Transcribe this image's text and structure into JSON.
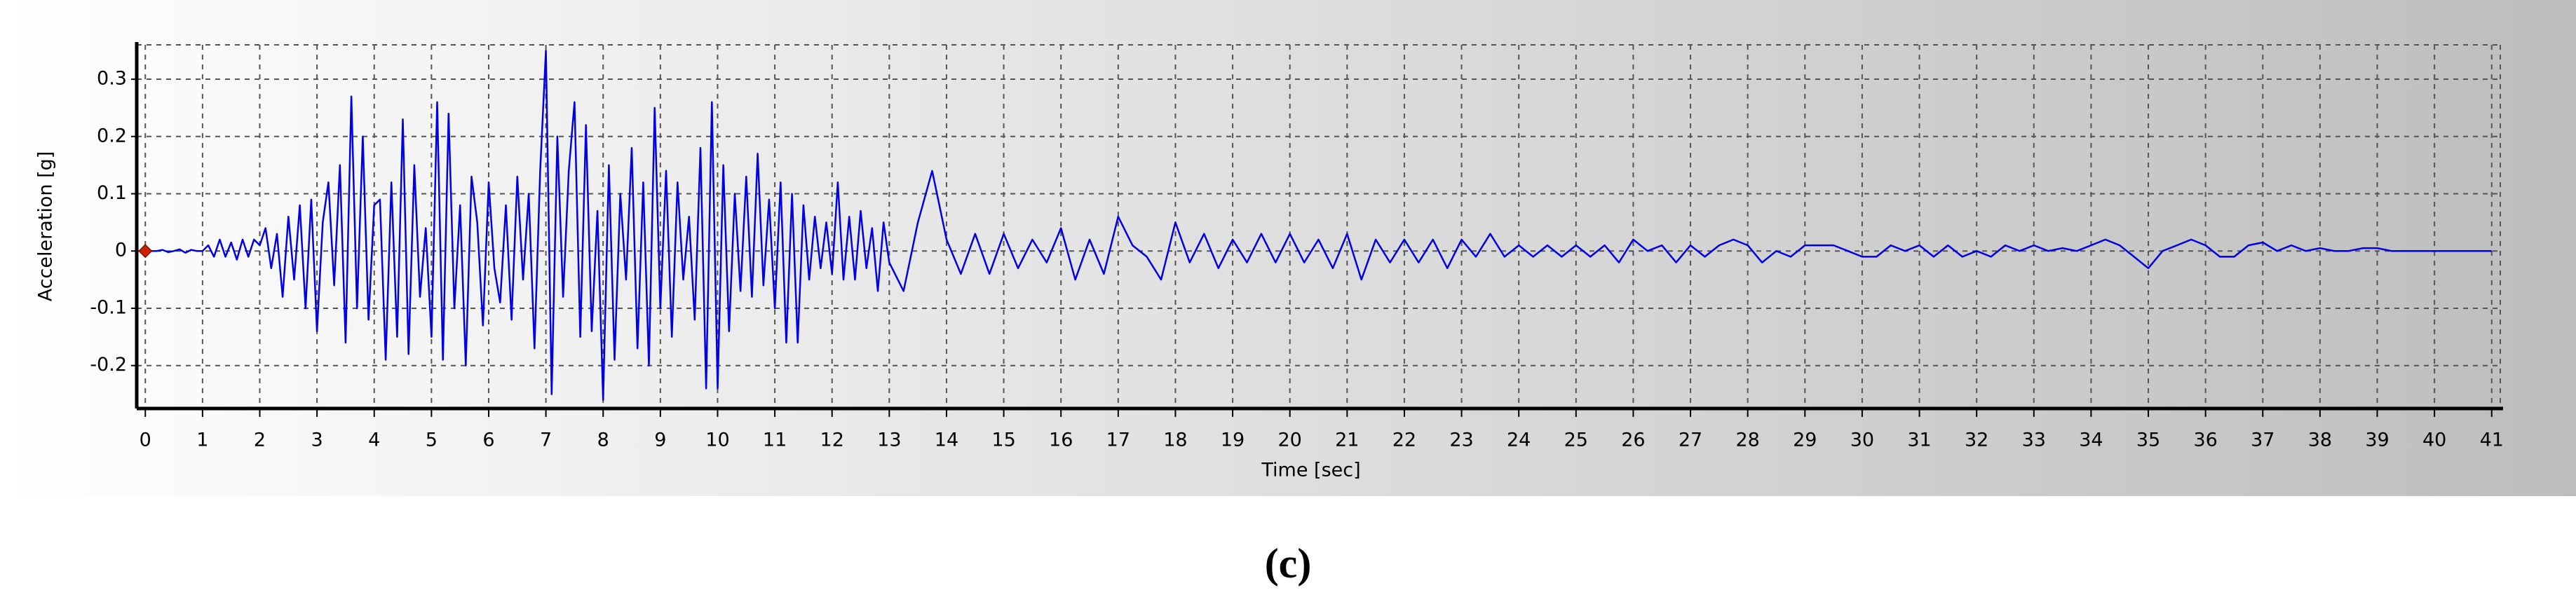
{
  "chart_data": {
    "type": "line",
    "x_label": "Time [sec]",
    "y_label": "Acceleration [g]",
    "caption": "(c)",
    "color": "#0000e6",
    "grid": true,
    "x": [
      0,
      0.1,
      0.2,
      0.3,
      0.4,
      0.5,
      0.6,
      0.7,
      0.8,
      0.9,
      1,
      1.1,
      1.2,
      1.3,
      1.4,
      1.5,
      1.6,
      1.7,
      1.8,
      1.9,
      2,
      2.1,
      2.2,
      2.3,
      2.4,
      2.5,
      2.6,
      2.7,
      2.8,
      2.9,
      3,
      3.1,
      3.2,
      3.3,
      3.4,
      3.5,
      3.6,
      3.7,
      3.8,
      3.9,
      4,
      4.1,
      4.2,
      4.3,
      4.4,
      4.5,
      4.6,
      4.7,
      4.8,
      4.9,
      5,
      5.1,
      5.2,
      5.3,
      5.4,
      5.5,
      5.6,
      5.7,
      5.8,
      5.9,
      6,
      6.1,
      6.2,
      6.3,
      6.4,
      6.5,
      6.6,
      6.7,
      6.8,
      6.9,
      7,
      7.1,
      7.2,
      7.3,
      7.4,
      7.5,
      7.6,
      7.7,
      7.8,
      7.9,
      8,
      8.1,
      8.2,
      8.3,
      8.4,
      8.5,
      8.6,
      8.7,
      8.8,
      8.9,
      9,
      9.1,
      9.2,
      9.3,
      9.4,
      9.5,
      9.6,
      9.7,
      9.8,
      9.9,
      10,
      10.1,
      10.2,
      10.3,
      10.4,
      10.5,
      10.6,
      10.7,
      10.8,
      10.9,
      11,
      11.1,
      11.2,
      11.3,
      11.4,
      11.5,
      11.6,
      11.7,
      11.8,
      11.9,
      12,
      12.1,
      12.2,
      12.3,
      12.4,
      12.5,
      12.6,
      12.7,
      12.8,
      12.9,
      13,
      13.25,
      13.5,
      13.75,
      14,
      14.25,
      14.5,
      14.75,
      15,
      15.25,
      15.5,
      15.75,
      16,
      16.25,
      16.5,
      16.75,
      17,
      17.25,
      17.5,
      17.75,
      18,
      18.25,
      18.5,
      18.75,
      19,
      19.25,
      19.5,
      19.75,
      20,
      20.25,
      20.5,
      20.75,
      21,
      21.25,
      21.5,
      21.75,
      22,
      22.25,
      22.5,
      22.75,
      23,
      23.25,
      23.5,
      23.75,
      24,
      24.25,
      24.5,
      24.75,
      25,
      25.25,
      25.5,
      25.75,
      26,
      26.25,
      26.5,
      26.75,
      27,
      27.25,
      27.5,
      27.75,
      28,
      28.25,
      28.5,
      28.75,
      29,
      29.25,
      29.5,
      29.75,
      30,
      30.25,
      30.5,
      30.75,
      31,
      31.25,
      31.5,
      31.75,
      32,
      32.25,
      32.5,
      32.75,
      33,
      33.25,
      33.5,
      33.75,
      34,
      34.25,
      34.5,
      34.75,
      35,
      35.25,
      35.5,
      35.75,
      36,
      36.25,
      36.5,
      36.75,
      37,
      37.25,
      37.5,
      37.75,
      38,
      38.25,
      38.5,
      38.75,
      39,
      39.25,
      39.5,
      39.75,
      40,
      40.5,
      41
    ],
    "values": [
      0,
      0,
      0,
      0.002,
      -0.002,
      0,
      0.003,
      -0.003,
      0.002,
      0,
      0,
      0.01,
      -0.01,
      0.02,
      -0.01,
      0.015,
      -0.015,
      0.02,
      -0.01,
      0.02,
      0.01,
      0.04,
      -0.03,
      0.03,
      -0.08,
      0.06,
      -0.05,
      0.08,
      -0.1,
      0.09,
      -0.14,
      0.05,
      0.12,
      -0.06,
      0.15,
      -0.16,
      0.27,
      -0.1,
      0.2,
      -0.12,
      0.08,
      0.09,
      -0.19,
      0.12,
      -0.15,
      0.23,
      -0.18,
      0.15,
      -0.08,
      0.04,
      -0.15,
      0.26,
      -0.19,
      0.24,
      -0.1,
      0.08,
      -0.2,
      0.13,
      0.05,
      -0.13,
      0.12,
      -0.03,
      -0.09,
      0.08,
      -0.12,
      0.13,
      -0.05,
      0.1,
      -0.17,
      0.14,
      0.35,
      -0.25,
      0.2,
      -0.08,
      0.14,
      0.26,
      -0.15,
      0.22,
      -0.14,
      0.07,
      -0.26,
      0.15,
      -0.19,
      0.1,
      -0.05,
      0.18,
      -0.17,
      0.12,
      -0.2,
      0.25,
      -0.1,
      0.14,
      -0.15,
      0.12,
      -0.05,
      0.06,
      -0.12,
      0.18,
      -0.24,
      0.26,
      -0.24,
      0.15,
      -0.14,
      0.1,
      -0.07,
      0.13,
      -0.08,
      0.17,
      -0.06,
      0.09,
      -0.1,
      0.12,
      -0.16,
      0.1,
      -0.16,
      0.08,
      -0.05,
      0.06,
      -0.03,
      0.05,
      -0.04,
      0.12,
      -0.05,
      0.06,
      -0.05,
      0.07,
      -0.03,
      0.04,
      -0.07,
      0.05,
      -0.02,
      -0.07,
      0.05,
      0.14,
      0.02,
      -0.04,
      0.03,
      -0.04,
      0.03,
      -0.03,
      0.02,
      -0.02,
      0.04,
      -0.05,
      0.02,
      -0.04,
      0.06,
      0.01,
      -0.01,
      -0.05,
      0.05,
      -0.02,
      0.03,
      -0.03,
      0.02,
      -0.02,
      0.03,
      -0.02,
      0.03,
      -0.02,
      0.02,
      -0.03,
      0.03,
      -0.05,
      0.02,
      -0.02,
      0.02,
      -0.02,
      0.02,
      -0.03,
      0.02,
      -0.01,
      0.03,
      -0.01,
      0.01,
      -0.01,
      0.01,
      -0.01,
      0.01,
      -0.01,
      0.01,
      -0.02,
      0.02,
      0,
      0.01,
      -0.02,
      0.01,
      -0.01,
      0.01,
      0.02,
      0.01,
      -0.02,
      0,
      -0.01,
      0.01,
      0.01,
      0.01,
      0,
      -0.01,
      -0.01,
      0.01,
      0,
      0.01,
      -0.01,
      0.01,
      -0.01,
      0,
      -0.01,
      0.01,
      0,
      0.01,
      0,
      0.005,
      0,
      0.01,
      0.02,
      0.01,
      -0.01,
      -0.03,
      0,
      0.01,
      0.02,
      0.01,
      -0.01,
      -0.01,
      0.01,
      0.015,
      0,
      0.01,
      0,
      0.005,
      0,
      0,
      0.005,
      0.005,
      0,
      0,
      0,
      0,
      0,
      0
    ],
    "xlim": [
      -0.15,
      41.15
    ],
    "ylim": [
      -0.275,
      0.36
    ],
    "xticks": [
      0,
      1,
      2,
      3,
      4,
      5,
      6,
      7,
      8,
      9,
      10,
      11,
      12,
      13,
      14,
      15,
      16,
      17,
      18,
      19,
      20,
      21,
      22,
      23,
      24,
      25,
      26,
      27,
      28,
      29,
      30,
      31,
      32,
      33,
      34,
      35,
      36,
      37,
      38,
      39,
      40,
      41
    ],
    "yticks": [
      -0.2,
      -0.1,
      0,
      0.1,
      0.2,
      0.3
    ]
  }
}
